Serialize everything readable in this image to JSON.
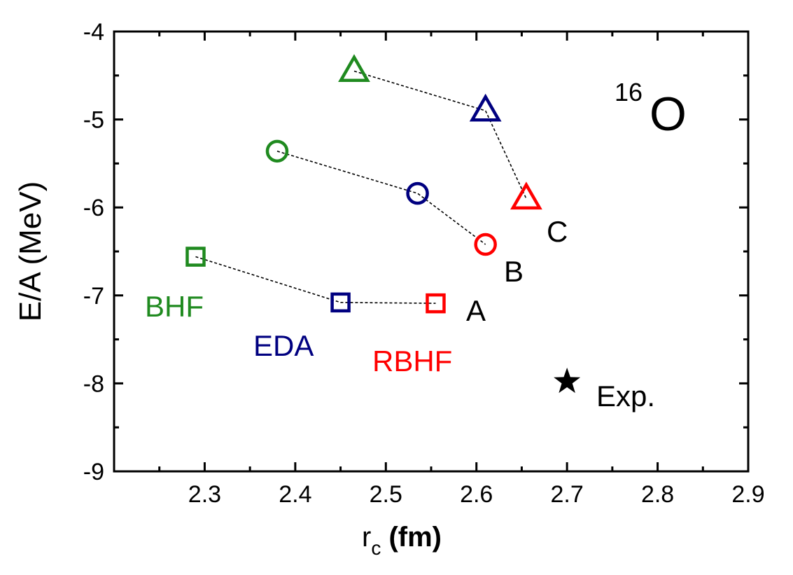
{
  "chart_data": {
    "type": "scatter",
    "title": "",
    "xlabel": {
      "main": "r",
      "subscript": "c",
      "suffix": " (fm)"
    },
    "ylabel": "E/A (MeV)",
    "xlim": [
      2.2,
      2.9
    ],
    "ylim": [
      -9,
      -4
    ],
    "x_ticks": [
      2.3,
      2.4,
      2.5,
      2.6,
      2.7,
      2.8,
      2.9
    ],
    "x_tick_labels": [
      "2.3",
      "2.4",
      "2.5",
      "2.6",
      "2.7",
      "2.8",
      "2.9"
    ],
    "y_ticks": [
      -9,
      -8,
      -7,
      -6,
      -5,
      -4
    ],
    "y_tick_labels": [
      "-9",
      "-8",
      "-7",
      "-6",
      "-5",
      "-4"
    ],
    "grid": false,
    "colors": {
      "BHF": "#1f8a1f",
      "EDA": "#000080",
      "RBHF": "#ff0000",
      "exp": "#000000",
      "line": "#000000"
    },
    "groups": [
      {
        "label": "A",
        "marker": "square",
        "points": [
          {
            "method": "BHF",
            "x": 2.29,
            "y": -6.56
          },
          {
            "method": "EDA",
            "x": 2.45,
            "y": -7.08
          },
          {
            "method": "RBHF",
            "x": 2.555,
            "y": -7.09
          }
        ]
      },
      {
        "label": "B",
        "marker": "circle",
        "points": [
          {
            "method": "BHF",
            "x": 2.38,
            "y": -5.36
          },
          {
            "method": "EDA",
            "x": 2.535,
            "y": -5.84
          },
          {
            "method": "RBHF",
            "x": 2.61,
            "y": -6.42
          }
        ]
      },
      {
        "label": "C",
        "marker": "triangle",
        "points": [
          {
            "method": "BHF",
            "x": 2.465,
            "y": -4.45
          },
          {
            "method": "EDA",
            "x": 2.61,
            "y": -4.9
          },
          {
            "method": "RBHF",
            "x": 2.655,
            "y": -5.9
          }
        ]
      }
    ],
    "experiment": {
      "label": "Exp.",
      "x": 2.7,
      "y": -7.98,
      "marker": "star"
    },
    "annotations": {
      "A": "A",
      "B": "B",
      "C": "C",
      "BHF": "BHF",
      "EDA": "EDA",
      "RBHF": "RBHF",
      "Exp": "Exp."
    },
    "nucleus": {
      "mass": "16",
      "symbol": "O"
    }
  }
}
